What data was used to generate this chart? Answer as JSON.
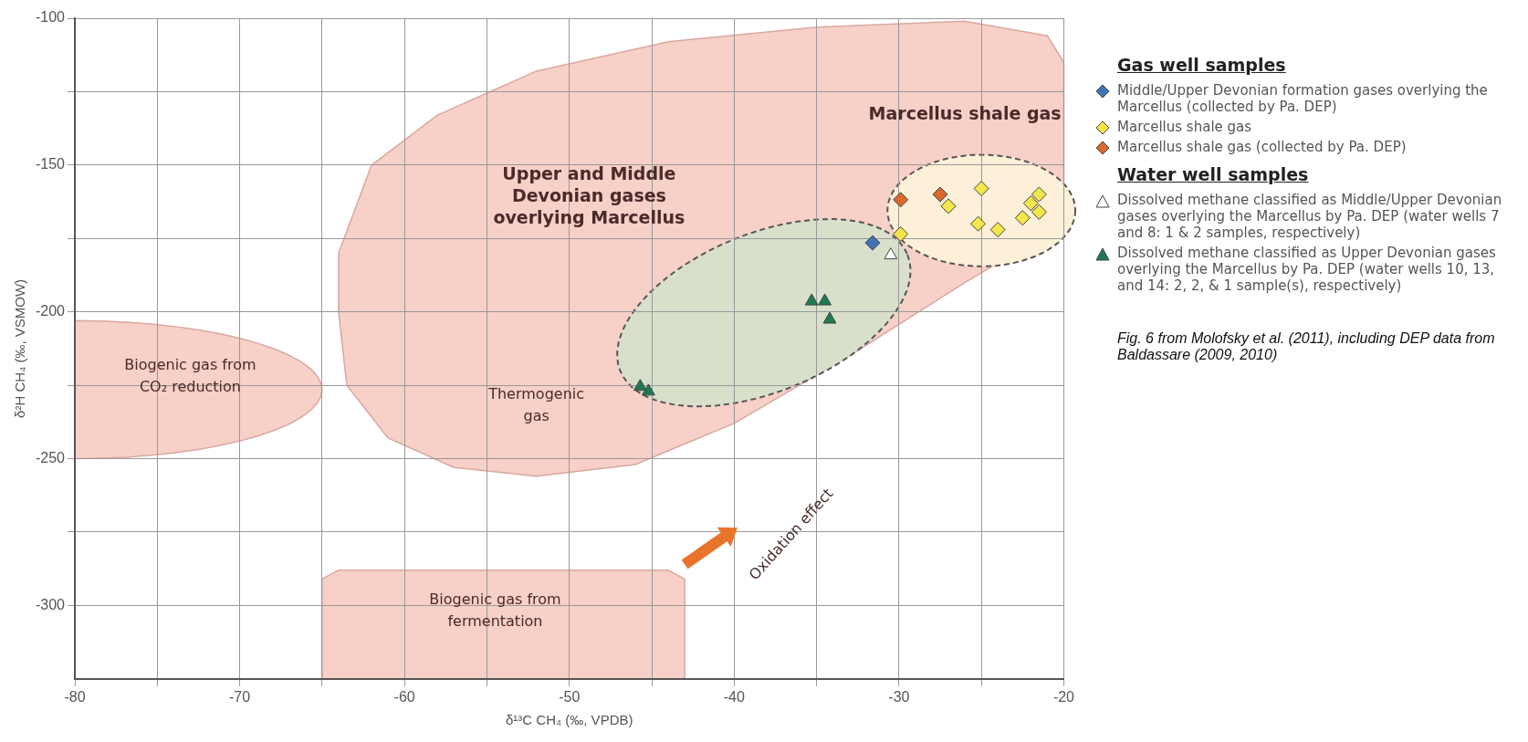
{
  "chart_data": {
    "type": "scatter",
    "xlabel": "δ¹³C CH₄ (‰, VPDB)",
    "ylabel": "δ²H CH₄ (‰, VSMOW)",
    "xlim": [
      -80,
      -20
    ],
    "ylim": [
      -325,
      -100
    ],
    "xticks": [
      -80,
      {
        "value": -75,
        "label": null
      },
      -70,
      {
        "value": -65,
        "label": null
      },
      -60,
      {
        "value": -55,
        "label": null
      },
      -50,
      {
        "value": -45,
        "label": null
      },
      -40,
      {
        "value": -35,
        "label": null
      },
      -30,
      {
        "value": -25,
        "label": null
      },
      -20
    ],
    "yticks": [
      -100,
      {
        "value": -125,
        "label": null
      },
      -150,
      {
        "value": -175,
        "label": null
      },
      -200,
      {
        "value": -225,
        "label": null
      },
      -250,
      {
        "value": -275,
        "label": null
      },
      -300
    ],
    "grid": true,
    "legend": "right",
    "series": [
      {
        "name": "Middle/Upper Devonian formation gases overlying the Marcellus (collected by Pa. DEP)",
        "color": "#3f73b5",
        "marker": "diamond",
        "x": [
          -31.6
        ],
        "values": [
          -176.5
        ]
      },
      {
        "name": "Marcellus shale gas",
        "color": "#f2e64a",
        "marker": "diamond",
        "x": [
          -29.9,
          -27,
          -25,
          -25.2,
          -24,
          -22.5,
          -22,
          -21.5,
          -21.5
        ],
        "values": [
          -173.5,
          -164,
          -158,
          -170,
          -172,
          -168,
          -163,
          -160,
          -166
        ]
      },
      {
        "name": "Marcellus shale gas (collected by Pa. DEP)",
        "color": "#d9692c",
        "marker": "diamond",
        "x": [
          -29.9,
          -27.5
        ],
        "values": [
          -161.8,
          -160
        ]
      },
      {
        "name": "Dissolved methane classified as Middle/Upper Devonian gases overlying the Marcellus by Pa. DEP (water wells 7 and 8: 1 & 2 samples, respectively)",
        "color": "#ffffff",
        "marker": "triangle",
        "x": [
          -30.5
        ],
        "values": [
          -180.7
        ]
      },
      {
        "name": "Dissolved methane classified as Upper Devonian gases overlying the Marcellus by Pa. DEP (water wells 10, 13, and 14: 2, 2, & 1 sample(s), respectively)",
        "color": "#1e7a50",
        "marker": "triangle",
        "x": [
          -35.3,
          -34.5,
          -34.2,
          -45.7,
          -45.2
        ],
        "values": [
          -196.4,
          -196.4,
          -202.6,
          -225.5,
          -227.1
        ]
      }
    ],
    "annotations": [
      "Gas well samples",
      "Water well samples",
      "Fig. 6 from Molofsky et al. (2011), including DEP data from Baldassare (2009, 2010)",
      "Upper and Middle\nDevonian gases\noverlying Marcellus",
      "Marcellus shale gas",
      "Thermogenic\ngas",
      "Biogenic gas from\nCO₂ reduction",
      "Biogenic gas from\nfermentation",
      "Oxidation effect"
    ]
  }
}
